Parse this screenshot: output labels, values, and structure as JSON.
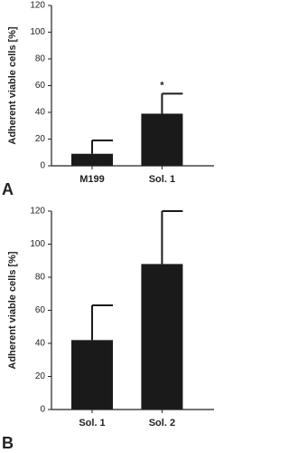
{
  "chart_data": [
    {
      "type": "bar",
      "panel": "A",
      "ylabel": "Adherent viable cells [%]",
      "categories": [
        "M199",
        "Sol. 1"
      ],
      "values": [
        9,
        39
      ],
      "errors": [
        10,
        15
      ],
      "annotations": [
        null,
        "*"
      ],
      "color": "#1a1a1a",
      "ylim": [
        0,
        120
      ],
      "yticks": [
        0,
        20,
        40,
        60,
        80,
        100,
        120
      ]
    },
    {
      "type": "bar",
      "panel": "B",
      "ylabel": "Adherent viable cells [%]",
      "categories": [
        "Sol. 1",
        "Sol. 2"
      ],
      "values": [
        42,
        88
      ],
      "errors": [
        21,
        32
      ],
      "annotations": [
        null,
        null
      ],
      "color": "#1a1a1a",
      "ylim": [
        0,
        120
      ],
      "yticks": [
        0,
        20,
        40,
        60,
        80,
        100,
        120
      ]
    }
  ]
}
